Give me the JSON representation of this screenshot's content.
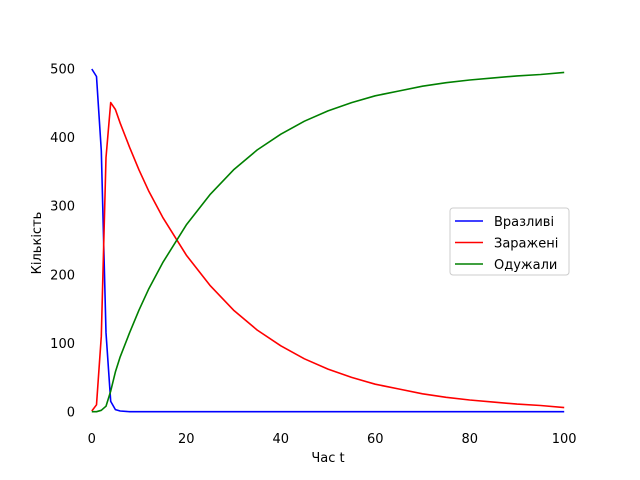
{
  "chart_data": {
    "type": "line",
    "title": "",
    "xlabel": "Час t",
    "ylabel": "Кількість",
    "xlim": [
      -2.5,
      102.5
    ],
    "ylim": [
      -15,
      515
    ],
    "xticks": [
      0,
      20,
      40,
      60,
      80,
      100
    ],
    "yticks": [
      0,
      100,
      200,
      300,
      400,
      500
    ],
    "grid": false,
    "legend_position": "center-right",
    "series": [
      {
        "name": "Вразливі",
        "color": "#0000ff",
        "x": [
          0,
          1,
          2,
          3,
          4,
          5,
          6,
          8,
          10,
          15,
          20,
          40,
          60,
          80,
          100
        ],
        "values": [
          499,
          488,
          380,
          115,
          15,
          3,
          1,
          0,
          0,
          0,
          0,
          0,
          0,
          0,
          0
        ]
      },
      {
        "name": "Заражені",
        "color": "#ff0000",
        "x": [
          0,
          1,
          2,
          3,
          4,
          5,
          6,
          8,
          10,
          12,
          15,
          20,
          25,
          30,
          35,
          40,
          45,
          50,
          55,
          60,
          65,
          70,
          75,
          80,
          85,
          90,
          95,
          100
        ],
        "values": [
          1,
          10,
          110,
          370,
          450,
          440,
          420,
          385,
          352,
          322,
          283,
          228,
          184,
          148,
          119,
          96,
          77,
          62,
          50,
          40,
          33,
          26,
          21,
          17,
          14,
          11,
          9,
          6
        ]
      },
      {
        "name": "Одужали",
        "color": "#008000",
        "x": [
          0,
          1,
          2,
          3,
          4,
          5,
          6,
          8,
          10,
          12,
          15,
          20,
          25,
          30,
          35,
          40,
          45,
          50,
          55,
          60,
          65,
          70,
          75,
          80,
          85,
          90,
          95,
          100
        ],
        "values": [
          0,
          0,
          2,
          8,
          30,
          58,
          80,
          115,
          148,
          178,
          217,
          272,
          316,
          352,
          381,
          404,
          423,
          438,
          450,
          460,
          467,
          474,
          479,
          483,
          486,
          489,
          491,
          494
        ]
      }
    ]
  }
}
